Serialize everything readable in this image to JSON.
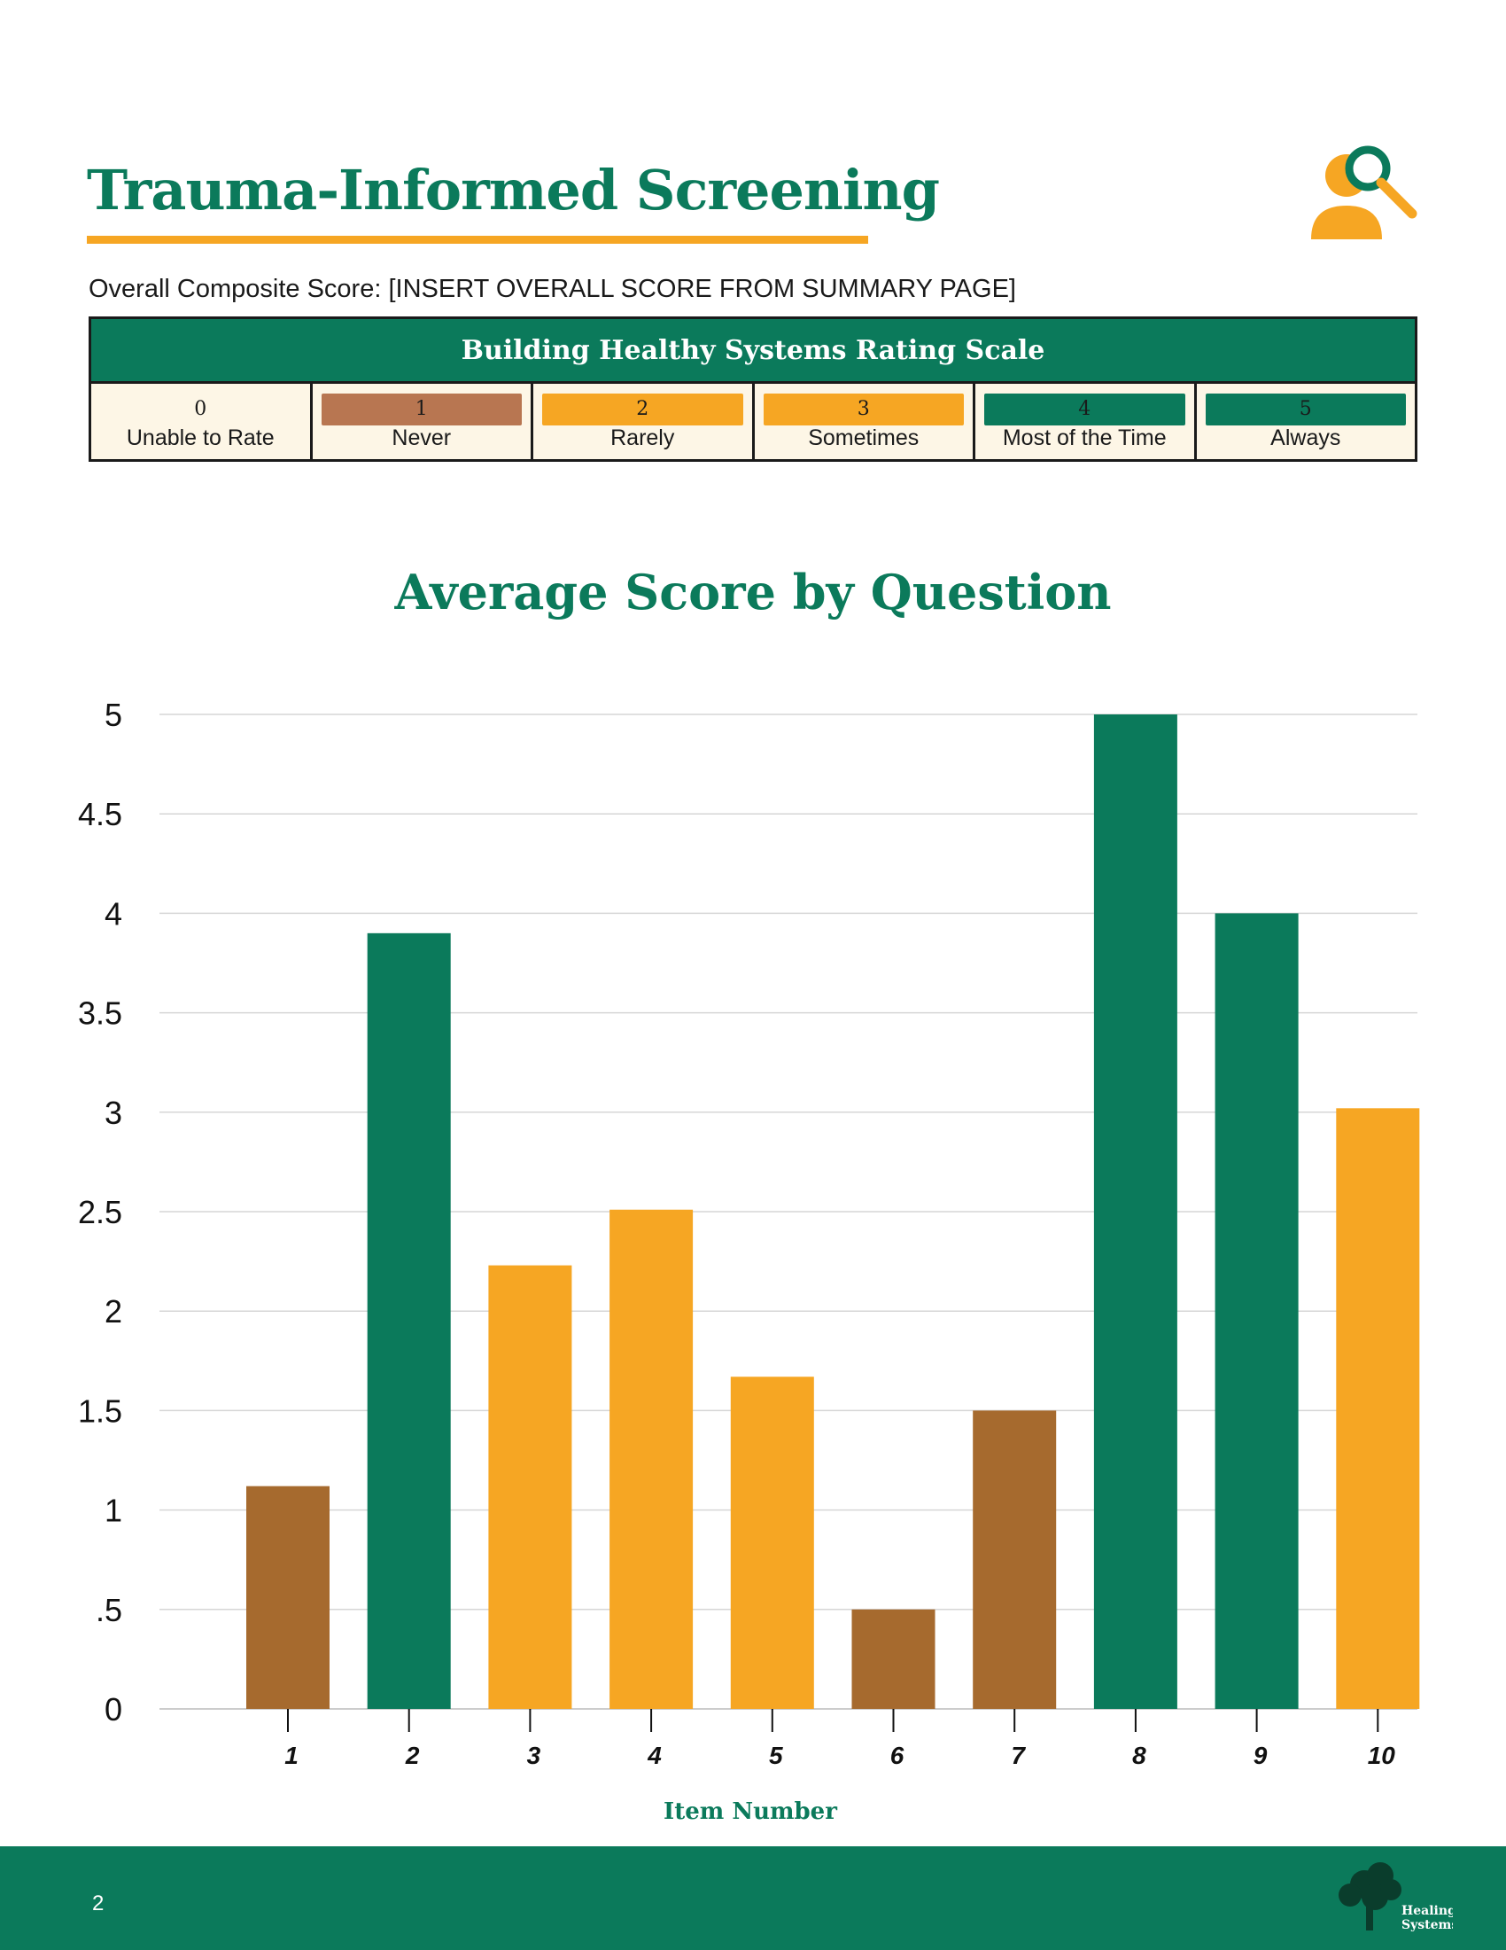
{
  "header": {
    "title": "Trauma-Informed Screening",
    "icon": "user-search-icon",
    "composite_text": "Overall Composite Score: [INSERT OVERALL SCORE FROM SUMMARY PAGE]"
  },
  "scale": {
    "title": "Building Healthy Systems Rating Scale",
    "items": [
      {
        "num": "0",
        "label": "Unable to Rate",
        "color": ""
      },
      {
        "num": "1",
        "label": "Never",
        "color": "#b87651"
      },
      {
        "num": "2",
        "label": "Rarely",
        "color": "#f6a623"
      },
      {
        "num": "3",
        "label": "Sometimes",
        "color": "#f6a623"
      },
      {
        "num": "4",
        "label": "Most of the Time",
        "color": "#0b7a5b"
      },
      {
        "num": "5",
        "label": "Always",
        "color": "#0b7a5b"
      }
    ]
  },
  "chart_data": {
    "type": "bar",
    "title": "Average Score by Question",
    "xlabel": "Item Number",
    "ylabel": "",
    "categories": [
      "1",
      "2",
      "3",
      "4",
      "5",
      "6",
      "7",
      "8",
      "9",
      "10"
    ],
    "values": [
      1.12,
      3.9,
      2.23,
      2.51,
      1.67,
      0.5,
      1.5,
      5.0,
      4.0,
      3.02
    ],
    "colors": [
      "#a66a2e",
      "#0b7a5b",
      "#f6a623",
      "#f6a623",
      "#f6a623",
      "#a66a2e",
      "#a66a2e",
      "#0b7a5b",
      "#0b7a5b",
      "#f6a623"
    ],
    "ylim": [
      0,
      5
    ],
    "yticks": [
      0,
      0.5,
      1,
      1.5,
      2,
      2.5,
      3,
      3.5,
      4,
      4.5,
      5
    ],
    "ytick_labels": [
      "0",
      ".5",
      "1",
      "1.5",
      "2",
      "2.5",
      "3",
      "3.5",
      "4",
      "4.5",
      "5"
    ],
    "grid": true,
    "legend": "none"
  },
  "footer": {
    "page_number": "2",
    "logo_text_line1": "Healing",
    "logo_text_line2": "Systems"
  }
}
